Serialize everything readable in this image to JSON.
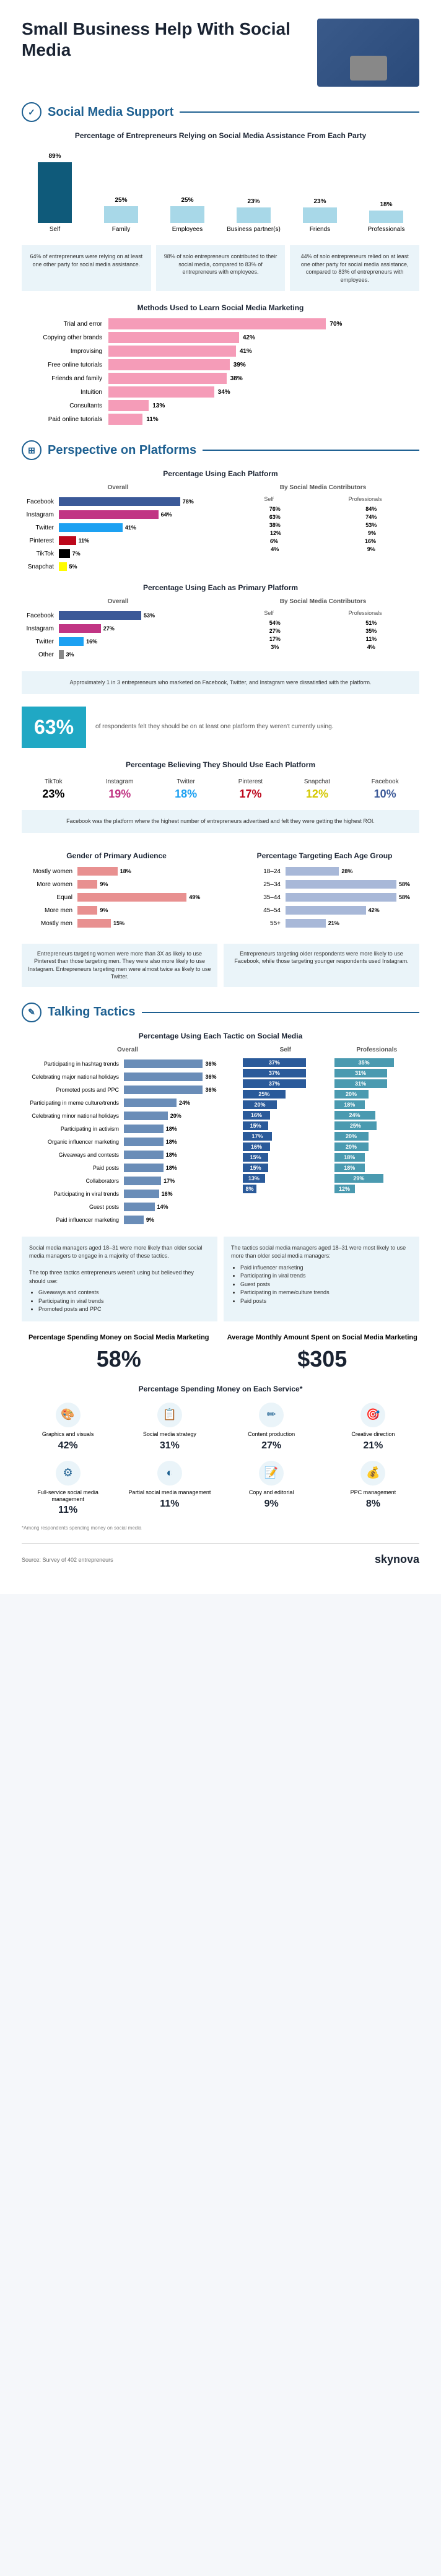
{
  "title": "Small Business Help With Social Media",
  "sections": {
    "support": {
      "title": "Social Media Support",
      "icon": "✓",
      "chart1": {
        "title": "Percentage of Entrepreneurs Relying on Social Media Assistance From Each Party",
        "categories": [
          "Self",
          "Family",
          "Employees",
          "Business partner(s)",
          "Friends",
          "Professionals"
        ],
        "values": [
          89,
          25,
          25,
          23,
          23,
          18
        ],
        "colors": [
          "#0f5a7a",
          "#a8d8e8",
          "#a8d8e8",
          "#a8d8e8",
          "#a8d8e8",
          "#a8d8e8"
        ],
        "max": 100
      },
      "infos": [
        "64% of entrepreneurs were relying on at least one other party for social media assistance.",
        "98% of solo entrepreneurs contributed to their social media, compared to 83% of entrepreneurs with employees.",
        "44% of solo entrepreneurs relied on at least one other party for social media assistance, compared to 83% of entrepreneurs with employees."
      ],
      "chart2": {
        "title": "Methods Used to Learn Social Media Marketing",
        "labels": [
          "Trial and error",
          "Copying other brands",
          "Improvising",
          "Free online tutorials",
          "Friends and family",
          "Intuition",
          "Consultants",
          "Paid online tutorials"
        ],
        "values": [
          70,
          42,
          41,
          39,
          38,
          34,
          13,
          11
        ],
        "color": "#f59cb8",
        "max": 100
      }
    },
    "platforms": {
      "title": "Perspective on Platforms",
      "icon": "⊞",
      "usage": {
        "title": "Percentage Using Each Platform",
        "labels": [
          "Facebook",
          "Instagram",
          "Twitter",
          "Pinterest",
          "TikTok",
          "Snapchat"
        ],
        "overall": [
          78,
          64,
          41,
          11,
          7,
          5
        ],
        "self": [
          76,
          63,
          38,
          12,
          6,
          4
        ],
        "prof": [
          84,
          74,
          53,
          9,
          16,
          9
        ],
        "colors": [
          "#3b5998",
          "#c13584",
          "#1da1f2",
          "#bd081c",
          "#000000",
          "#fffc00"
        ]
      },
      "primary": {
        "title": "Percentage Using Each as Primary Platform",
        "labels": [
          "Facebook",
          "Instagram",
          "Twitter",
          "Other"
        ],
        "overall": [
          53,
          27,
          16,
          3
        ],
        "self": [
          54,
          27,
          17,
          3
        ],
        "prof": [
          51,
          35,
          11,
          4
        ],
        "colors": [
          "#3b5998",
          "#c13584",
          "#1da1f2",
          "#888"
        ]
      },
      "callout1": "Approximately 1 in 3 entrepreneurs who marketed on Facebook, Twitter, and Instagram were dissatisfied with the platform.",
      "bigstat": {
        "pct": "63%",
        "text": "of respondents felt they should be on at least one platform they weren't currently using."
      },
      "believe": {
        "title": "Percentage Believing They Should Use Each Platform",
        "items": [
          {
            "lbl": "TikTok",
            "val": "23%",
            "color": "#000"
          },
          {
            "lbl": "Instagram",
            "val": "19%",
            "color": "#c13584"
          },
          {
            "lbl": "Twitter",
            "val": "18%",
            "color": "#1da1f2"
          },
          {
            "lbl": "Pinterest",
            "val": "17%",
            "color": "#bd081c"
          },
          {
            "lbl": "Snapchat",
            "val": "12%",
            "color": "#d4c800"
          },
          {
            "lbl": "Facebook",
            "val": "10%",
            "color": "#3b5998"
          }
        ]
      },
      "callout2": "Facebook was the platform where the highest number of entrepreneurs advertised and felt they were getting the highest ROI.",
      "gender": {
        "title": "Gender of Primary Audience",
        "labels": [
          "Mostly women",
          "More women",
          "Equal",
          "More men",
          "Mostly men"
        ],
        "values": [
          18,
          9,
          49,
          9,
          15
        ],
        "color": "#e89090"
      },
      "age": {
        "title": "Percentage Targeting Each Age Group",
        "labels": [
          "18–24",
          "25–34",
          "35–44",
          "45–54",
          "55+"
        ],
        "values": [
          28,
          58,
          58,
          42,
          21
        ],
        "color": "#a8b8d8"
      },
      "small_callouts": [
        "Entrepreneurs targeting women were more than 3X as likely to use Pinterest than those targeting men. They were also more likely to use Instagram. Entrepreneurs targeting men were almost twice as likely to use Twitter.",
        "Entrepreneurs targeting older respondents were more likely to use Facebook, while those targeting younger respondents used Instagram."
      ]
    },
    "tactics": {
      "title": "Talking Tactics",
      "icon": "✎",
      "chart": {
        "title": "Percentage Using Each Tactic on Social Media",
        "labels": [
          "Participating in hashtag trends",
          "Celebrating major national holidays",
          "Promoted posts and PPC",
          "Participating in meme culture/trends",
          "Celebrating minor national holidays",
          "Participating in activism",
          "Organic influencer marketing",
          "Giveaways and contests",
          "Paid posts",
          "Collaborators",
          "Participating in viral trends",
          "Guest posts",
          "Paid influencer marketing"
        ],
        "overall": [
          36,
          36,
          36,
          24,
          20,
          18,
          18,
          18,
          18,
          17,
          16,
          14,
          9
        ],
        "self": [
          37,
          37,
          37,
          25,
          20,
          16,
          15,
          17,
          16,
          15,
          15,
          13,
          8
        ],
        "prof": [
          35,
          31,
          31,
          20,
          18,
          24,
          25,
          20,
          20,
          18,
          18,
          29,
          12
        ],
        "color": "#6a8db8",
        "self_color": "#2a5a9a",
        "prof_color": "#4a9ab0"
      },
      "callouts": [
        {
          "text": "Social media managers aged 18–31 were more likely than older social media managers to engage in a majority of these tactics.",
          "sub": "The top three tactics entrepreneurs weren't using but believed they should use:",
          "items": [
            "Giveaways and contests",
            "Participating in viral trends",
            "Promoted posts and PPC"
          ]
        },
        {
          "text": "The tactics social media managers aged 18–31 were most likely to use more than older social media managers:",
          "items": [
            "Paid influencer marketing",
            "Participating in viral trends",
            "Guest posts",
            "Participating in meme/culture trends",
            "Paid posts"
          ]
        }
      ],
      "spend": {
        "title": "Percentage Spending Money on Social Media Marketing",
        "val": "58%"
      },
      "avg": {
        "title": "Average Monthly Amount Spent on Social Media Marketing",
        "val": "$305"
      },
      "services": {
        "title": "Percentage Spending Money on Each Service*",
        "items": [
          {
            "icon": "🎨",
            "lbl": "Graphics and visuals",
            "pct": "42%"
          },
          {
            "icon": "📋",
            "lbl": "Social media strategy",
            "pct": "31%"
          },
          {
            "icon": "✏",
            "lbl": "Content production",
            "pct": "27%"
          },
          {
            "icon": "🎯",
            "lbl": "Creative direction",
            "pct": "21%"
          },
          {
            "icon": "⚙",
            "lbl": "Full-service social media management",
            "pct": "11%"
          },
          {
            "icon": "◐",
            "lbl": "Partial social media management",
            "pct": "11%"
          },
          {
            "icon": "📝",
            "lbl": "Copy and editorial",
            "pct": "9%"
          },
          {
            "icon": "💰",
            "lbl": "PPC management",
            "pct": "8%"
          }
        ]
      },
      "footnote": "*Among respondents spending money on social media"
    }
  },
  "footer": {
    "source": "Source: Survey of 402 entrepreneurs",
    "logo": "skynova"
  }
}
